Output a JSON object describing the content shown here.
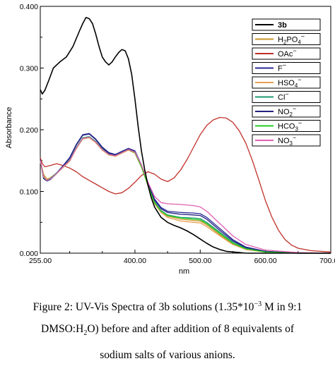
{
  "chart_data": {
    "type": "line",
    "xlabel": "nm",
    "ylabel": "Absorbance",
    "xlim": [
      255,
      700
    ],
    "ylim": [
      0,
      0.4
    ],
    "x_ticks": [
      {
        "value": 255,
        "label": "255.00"
      },
      {
        "value": 400,
        "label": "400.00"
      },
      {
        "value": 500,
        "label": "500.00"
      },
      {
        "value": 600,
        "label": "600.00"
      },
      {
        "value": 700,
        "label": "700.00"
      }
    ],
    "y_ticks": [
      {
        "value": 0,
        "label": "0.000"
      },
      {
        "value": 0.1,
        "label": "0.100"
      },
      {
        "value": 0.2,
        "label": "0.200"
      },
      {
        "value": 0.3,
        "label": "0.300"
      },
      {
        "value": 0.4,
        "label": "0.400"
      }
    ],
    "grid": false,
    "legend_position": "top-right",
    "series": [
      {
        "name": "3b",
        "color": "#000000",
        "bold": true,
        "x": [
          255,
          258,
          262,
          268,
          275,
          285,
          295,
          305,
          315,
          320,
          325,
          330,
          335,
          340,
          345,
          350,
          355,
          360,
          365,
          370,
          375,
          380,
          385,
          390,
          395,
          400,
          405,
          410,
          415,
          420,
          425,
          430,
          440,
          450,
          460,
          470,
          480,
          490,
          500,
          510,
          520,
          530,
          540,
          550,
          560,
          570,
          580,
          600,
          650,
          700
        ],
        "y": [
          0.265,
          0.258,
          0.264,
          0.28,
          0.3,
          0.31,
          0.318,
          0.335,
          0.36,
          0.372,
          0.382,
          0.38,
          0.372,
          0.355,
          0.335,
          0.318,
          0.31,
          0.305,
          0.31,
          0.318,
          0.325,
          0.33,
          0.328,
          0.315,
          0.29,
          0.25,
          0.205,
          0.165,
          0.135,
          0.11,
          0.09,
          0.075,
          0.058,
          0.05,
          0.045,
          0.041,
          0.036,
          0.03,
          0.023,
          0.016,
          0.01,
          0.006,
          0.003,
          0.002,
          0.001,
          0.0,
          0.0,
          0.0,
          0.0,
          0.0
        ]
      },
      {
        "name": "H2PO4−",
        "color": "#c8962a",
        "x": [
          255,
          260,
          265,
          270,
          280,
          290,
          300,
          310,
          320,
          330,
          340,
          350,
          360,
          370,
          380,
          390,
          400,
          410,
          420,
          430,
          440,
          450,
          470,
          490,
          500,
          510,
          530,
          550,
          570,
          600,
          650,
          700
        ],
        "y": [
          0.15,
          0.128,
          0.12,
          0.122,
          0.13,
          0.14,
          0.15,
          0.17,
          0.186,
          0.188,
          0.18,
          0.168,
          0.16,
          0.158,
          0.163,
          0.168,
          0.163,
          0.14,
          0.11,
          0.082,
          0.068,
          0.06,
          0.055,
          0.053,
          0.052,
          0.046,
          0.03,
          0.015,
          0.006,
          0.002,
          0.0,
          0.0
        ]
      },
      {
        "name": "OAc−",
        "color": "#c0302a",
        "x": [
          255,
          258,
          262,
          270,
          280,
          290,
          300,
          310,
          320,
          330,
          340,
          350,
          360,
          370,
          380,
          390,
          400,
          410,
          420,
          430,
          440,
          450,
          460,
          470,
          480,
          490,
          500,
          510,
          520,
          530,
          540,
          550,
          560,
          570,
          580,
          590,
          600,
          610,
          620,
          630,
          640,
          650,
          670,
          700
        ],
        "y": [
          0.155,
          0.145,
          0.14,
          0.142,
          0.145,
          0.142,
          0.138,
          0.132,
          0.124,
          0.118,
          0.112,
          0.106,
          0.1,
          0.096,
          0.098,
          0.105,
          0.115,
          0.126,
          0.132,
          0.128,
          0.12,
          0.116,
          0.122,
          0.135,
          0.152,
          0.172,
          0.192,
          0.207,
          0.216,
          0.22,
          0.219,
          0.212,
          0.198,
          0.178,
          0.15,
          0.118,
          0.085,
          0.058,
          0.037,
          0.022,
          0.013,
          0.008,
          0.004,
          0.002
        ]
      },
      {
        "name": "F−",
        "color": "#2a2a9a",
        "x": [
          255,
          260,
          265,
          270,
          280,
          290,
          300,
          310,
          320,
          330,
          340,
          350,
          360,
          370,
          380,
          390,
          400,
          410,
          420,
          430,
          440,
          450,
          470,
          490,
          500,
          510,
          530,
          550,
          570,
          600,
          650,
          700
        ],
        "y": [
          0.152,
          0.122,
          0.118,
          0.12,
          0.13,
          0.142,
          0.155,
          0.176,
          0.192,
          0.194,
          0.185,
          0.172,
          0.163,
          0.16,
          0.165,
          0.17,
          0.166,
          0.143,
          0.113,
          0.088,
          0.074,
          0.068,
          0.066,
          0.065,
          0.064,
          0.058,
          0.04,
          0.022,
          0.01,
          0.003,
          0.0,
          0.0
        ]
      },
      {
        "name": "HSO4−",
        "color": "#e8a050",
        "x": [
          255,
          260,
          265,
          270,
          280,
          290,
          300,
          310,
          320,
          330,
          340,
          350,
          360,
          370,
          380,
          390,
          400,
          410,
          420,
          430,
          440,
          450,
          470,
          490,
          500,
          510,
          530,
          550,
          570,
          600,
          650,
          700
        ],
        "y": [
          0.148,
          0.126,
          0.119,
          0.121,
          0.129,
          0.139,
          0.149,
          0.169,
          0.185,
          0.187,
          0.179,
          0.167,
          0.159,
          0.157,
          0.162,
          0.167,
          0.162,
          0.139,
          0.109,
          0.08,
          0.066,
          0.058,
          0.052,
          0.05,
          0.049,
          0.043,
          0.028,
          0.014,
          0.006,
          0.002,
          0.0,
          0.0
        ]
      },
      {
        "name": "Cl−",
        "color": "#1e9a6e",
        "x": [
          255,
          260,
          265,
          270,
          280,
          290,
          300,
          310,
          320,
          330,
          340,
          350,
          360,
          370,
          380,
          390,
          400,
          410,
          420,
          430,
          440,
          450,
          470,
          490,
          500,
          510,
          530,
          550,
          570,
          600,
          650,
          700
        ],
        "y": [
          0.149,
          0.124,
          0.118,
          0.121,
          0.13,
          0.14,
          0.151,
          0.171,
          0.187,
          0.189,
          0.181,
          0.169,
          0.161,
          0.159,
          0.164,
          0.169,
          0.164,
          0.141,
          0.111,
          0.083,
          0.069,
          0.062,
          0.058,
          0.057,
          0.056,
          0.05,
          0.034,
          0.018,
          0.008,
          0.002,
          0.0,
          0.0
        ]
      },
      {
        "name": "NO2−",
        "color": "#202080",
        "x": [
          255,
          260,
          265,
          270,
          280,
          290,
          300,
          310,
          320,
          330,
          340,
          350,
          360,
          370,
          380,
          390,
          400,
          410,
          420,
          430,
          440,
          450,
          470,
          490,
          500,
          510,
          530,
          550,
          570,
          600,
          650,
          700
        ],
        "y": [
          0.151,
          0.121,
          0.117,
          0.119,
          0.129,
          0.141,
          0.154,
          0.175,
          0.191,
          0.193,
          0.184,
          0.171,
          0.162,
          0.159,
          0.164,
          0.169,
          0.165,
          0.142,
          0.112,
          0.086,
          0.072,
          0.066,
          0.063,
          0.062,
          0.061,
          0.055,
          0.037,
          0.02,
          0.009,
          0.003,
          0.0,
          0.0
        ]
      },
      {
        "name": "HCO3−",
        "color": "#22cc22",
        "x": [
          255,
          260,
          265,
          270,
          280,
          290,
          300,
          310,
          320,
          330,
          340,
          350,
          360,
          370,
          380,
          390,
          400,
          410,
          420,
          430,
          440,
          450,
          470,
          490,
          500,
          510,
          530,
          550,
          570,
          600,
          650,
          700
        ],
        "y": [
          0.15,
          0.123,
          0.118,
          0.12,
          0.129,
          0.14,
          0.15,
          0.17,
          0.186,
          0.188,
          0.18,
          0.168,
          0.16,
          0.158,
          0.163,
          0.168,
          0.163,
          0.14,
          0.11,
          0.082,
          0.068,
          0.061,
          0.057,
          0.055,
          0.054,
          0.048,
          0.032,
          0.016,
          0.007,
          0.002,
          0.0,
          0.0
        ]
      },
      {
        "name": "NO3−",
        "color": "#e060b0",
        "x": [
          255,
          260,
          265,
          270,
          280,
          290,
          300,
          310,
          320,
          330,
          340,
          350,
          360,
          370,
          380,
          390,
          400,
          410,
          420,
          430,
          440,
          450,
          470,
          490,
          500,
          510,
          530,
          550,
          570,
          600,
          650,
          700
        ],
        "y": [
          0.15,
          0.124,
          0.118,
          0.12,
          0.129,
          0.14,
          0.15,
          0.17,
          0.186,
          0.188,
          0.18,
          0.168,
          0.16,
          0.158,
          0.163,
          0.168,
          0.164,
          0.143,
          0.115,
          0.092,
          0.082,
          0.08,
          0.079,
          0.077,
          0.075,
          0.068,
          0.048,
          0.028,
          0.014,
          0.005,
          0.001,
          0.0
        ]
      }
    ]
  },
  "legend": {
    "items": [
      {
        "base": "3b",
        "sub": "",
        "rest": "",
        "sup": ""
      },
      {
        "base": "H",
        "sub": "2",
        "rest": "PO",
        "sub2": "4",
        "sup": "−"
      },
      {
        "base": "OAc",
        "sub": "",
        "rest": "",
        "sup": "−"
      },
      {
        "base": "F",
        "sub": "",
        "rest": "",
        "sup": "−"
      },
      {
        "base": "HSO",
        "sub": "4",
        "rest": "",
        "sup": "−"
      },
      {
        "base": "Cl",
        "sub": "",
        "rest": "",
        "sup": "−"
      },
      {
        "base": "NO",
        "sub": "2",
        "rest": "",
        "sup": "−"
      },
      {
        "base": "HCO",
        "sub": "3",
        "rest": "",
        "sup": "−"
      },
      {
        "base": "NO",
        "sub": "3",
        "rest": "",
        "sup": "−"
      }
    ]
  },
  "caption": {
    "line1_a": "Figure 2: UV-Vis Spectra of 3b solutions (1.35*10",
    "line1_sup": "−3",
    "line1_b": " M in 9:1",
    "line2_a": "DMSO:H",
    "line2_sub": "2",
    "line2_b": "O) before and after addition of 8 equivalents of",
    "line3": "sodium salts of various anions."
  }
}
